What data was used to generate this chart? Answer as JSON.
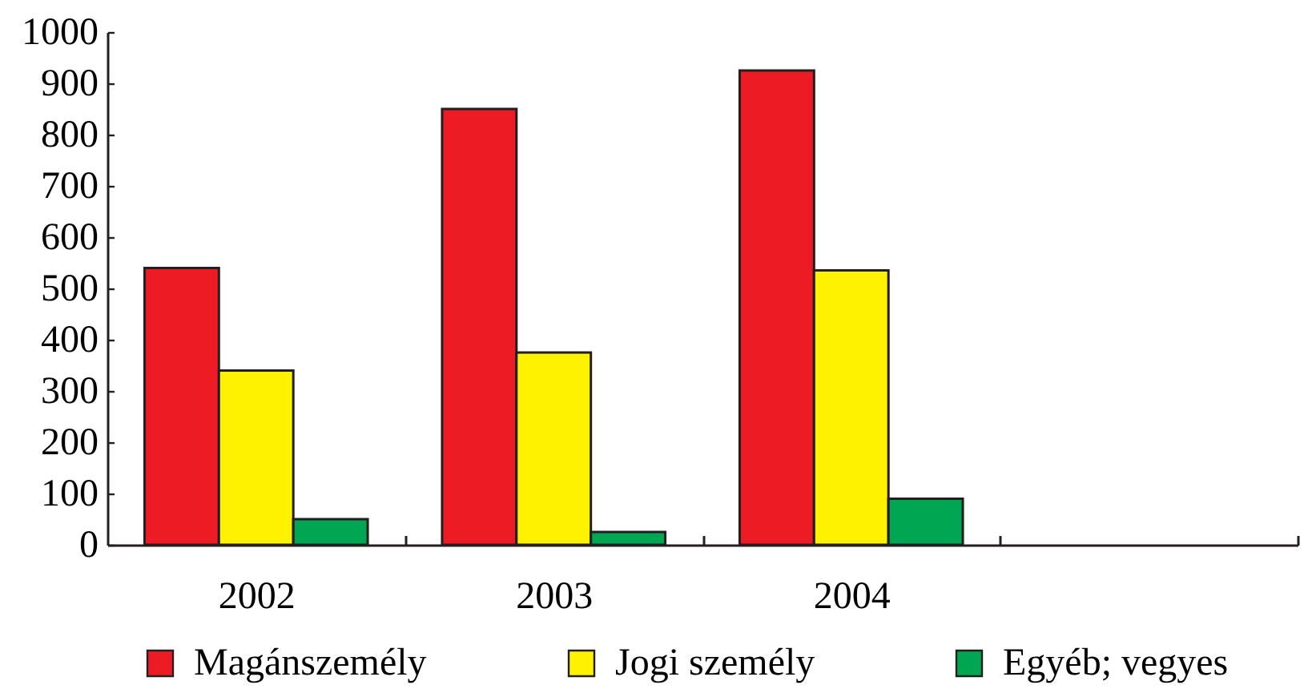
{
  "chart_data": {
    "type": "bar",
    "categories": [
      "2002",
      "2003",
      "2004",
      null
    ],
    "series": [
      {
        "name": "Magánszemély",
        "color": "#ed1c24",
        "values": [
          540,
          850,
          925,
          null
        ]
      },
      {
        "name": "Jogi személy",
        "color": "#fff200",
        "values": [
          340,
          375,
          535,
          null
        ]
      },
      {
        "name": "Egyéb; vegyes",
        "color": "#00a651",
        "values": [
          50,
          25,
          90,
          null
        ]
      }
    ],
    "ylim": [
      0,
      1000
    ],
    "yticks": [
      0,
      100,
      200,
      300,
      400,
      500,
      600,
      700,
      800,
      900,
      1000
    ],
    "grid": false,
    "legend": "bottom"
  }
}
